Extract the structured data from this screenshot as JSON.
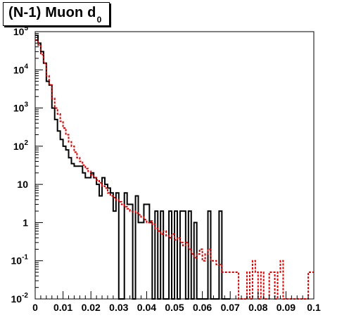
{
  "chart_data": {
    "type": "line",
    "title": "(N-1) Muon d",
    "title_subscript": "0",
    "xlabel": "",
    "ylabel": "",
    "xlim": [
      0,
      0.1
    ],
    "ylim": [
      0.01,
      100000
    ],
    "log_y": true,
    "grid": false,
    "legend": "none",
    "x_tick_labels": [
      "0",
      "0.01",
      "0.02",
      "0.03",
      "0.04",
      "0.05",
      "0.06",
      "0.07",
      "0.08",
      "0.09",
      "0.1"
    ],
    "y_tick_labels": [
      {
        "base": "10",
        "exp": "-2"
      },
      {
        "base": "10",
        "exp": "-1"
      },
      {
        "base": "1",
        "exp": ""
      },
      {
        "base": "10",
        "exp": ""
      },
      {
        "base": "10",
        "exp": "2"
      },
      {
        "base": "10",
        "exp": "3"
      },
      {
        "base": "10",
        "exp": "4"
      },
      {
        "base": "10",
        "exp": "5"
      }
    ],
    "bin_width": 0.001,
    "series": [
      {
        "style": "solid",
        "color": "#000000",
        "values": [
          80000,
          50000,
          30000,
          15000,
          5000,
          4000,
          1000,
          500,
          250,
          150,
          100,
          80,
          50,
          35,
          30,
          30,
          30,
          20,
          15,
          15,
          20,
          15,
          10,
          5,
          15,
          10,
          8,
          6,
          2,
          6,
          0.01,
          0.01,
          6,
          3,
          3,
          0.01,
          5,
          1,
          1,
          3,
          3,
          1,
          0.01,
          2,
          0.01,
          2,
          0.01,
          0.01,
          2,
          0.01,
          2,
          0.01,
          2,
          2,
          0.01,
          2,
          0.01,
          1,
          0.01,
          0.01,
          0.01,
          0.01,
          2,
          0.01,
          0.01,
          0.01,
          2,
          0.01,
          0.01,
          0.01
        ]
      },
      {
        "style": "dashed",
        "color": "#dd0000",
        "values": [
          60000,
          45000,
          25000,
          15000,
          7000,
          4000,
          1800,
          1000,
          700,
          450,
          300,
          200,
          130,
          100,
          70,
          50,
          40,
          32,
          26,
          22,
          18,
          15,
          13,
          11,
          9,
          8,
          6,
          5,
          4.5,
          4,
          3.5,
          3,
          2.6,
          2.3,
          2,
          2,
          1.8,
          1.6,
          1.4,
          1.2,
          1,
          1.1,
          0.9,
          0.7,
          0.6,
          0.5,
          0.6,
          0.45,
          0.4,
          0.5,
          0.35,
          0.4,
          0.3,
          0.25,
          0.3,
          0.2,
          0.15,
          0.12,
          0.15,
          0.2,
          0.1,
          0.15,
          0.2,
          0.1,
          0.1,
          0.08,
          0.08,
          0.05,
          0.05,
          0.05,
          0.05,
          0.05,
          0.05,
          0.01,
          0.01,
          0.01,
          0.05,
          0.01,
          0.1,
          0.05,
          0.01,
          0.05,
          0.01,
          0.01,
          0.05,
          0.05,
          0.01,
          0.05,
          0.1,
          0.01,
          0.01,
          0.01,
          0.01,
          0.01,
          0.01,
          0.01,
          0.01,
          0.01,
          0.05,
          0.05
        ]
      }
    ]
  }
}
